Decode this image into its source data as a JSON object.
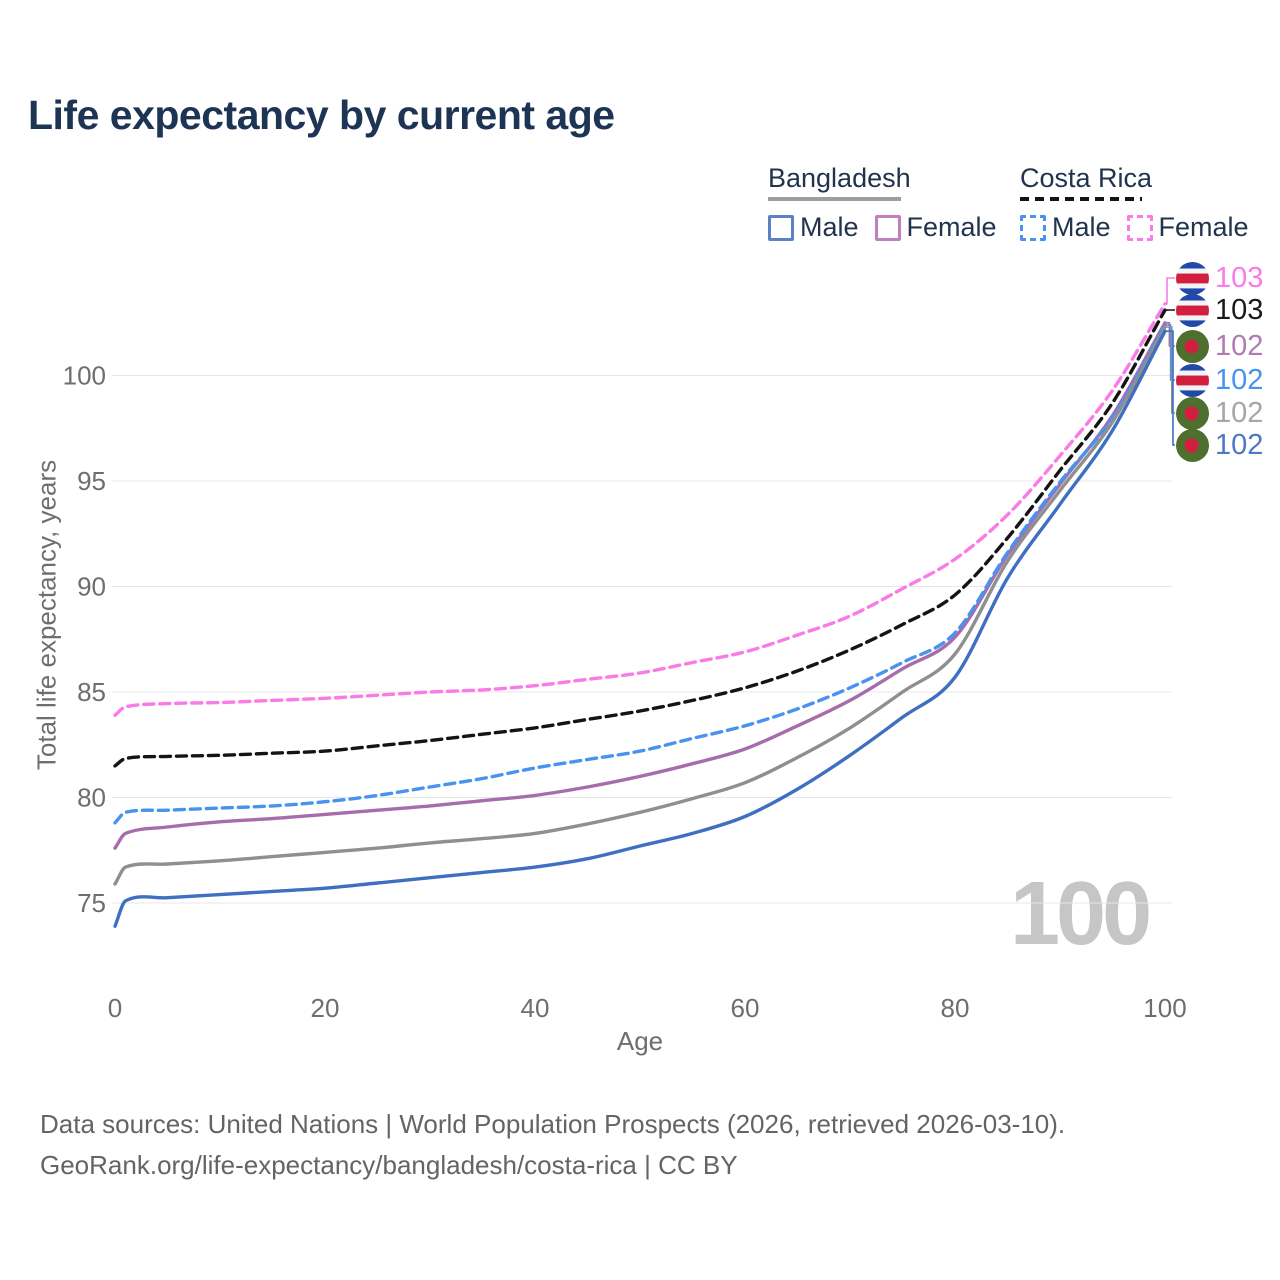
{
  "title": "Life expectancy by current age",
  "legend": {
    "groups": [
      {
        "name": "Bangladesh",
        "underline": "solid",
        "underline_color": "#9e9e9e",
        "items": [
          {
            "label": "Male",
            "color": "#5b82c7",
            "dash": false
          },
          {
            "label": "Female",
            "color": "#c17fc0",
            "dash": false
          }
        ]
      },
      {
        "name": "Costa Rica",
        "underline": "dashed",
        "underline_color": "#141414",
        "items": [
          {
            "label": "Male",
            "color": "#4893f0",
            "dash": true
          },
          {
            "label": "Female",
            "color": "#fa7ae6",
            "dash": true
          }
        ]
      }
    ]
  },
  "axes": {
    "y": {
      "title": "Total life expectancy, years",
      "ticks": [
        "75",
        "80",
        "85",
        "90",
        "95",
        "100"
      ],
      "tick_values": [
        75,
        80,
        85,
        90,
        95,
        100
      ]
    },
    "x": {
      "title": "Age",
      "ticks": [
        "0",
        "20",
        "40",
        "60",
        "80",
        "100"
      ],
      "tick_values": [
        0,
        20,
        40,
        60,
        80,
        100
      ]
    }
  },
  "age_indicator": "100",
  "end_labels": [
    {
      "flag": "costa-rica",
      "value": "103",
      "color": "#fa7ae6"
    },
    {
      "flag": "costa-rica",
      "value": "103",
      "color": "#1a1a1a"
    },
    {
      "flag": "bangladesh",
      "value": "102",
      "color": "#b07ab2"
    },
    {
      "flag": "costa-rica",
      "value": "102",
      "color": "#4893f0"
    },
    {
      "flag": "bangladesh",
      "value": "102",
      "color": "#a6a6a6"
    },
    {
      "flag": "bangladesh",
      "value": "102",
      "color": "#4d78c6"
    }
  ],
  "footer": {
    "line1": "Data sources: United Nations | World Population Prospects (2026, retrieved 2026-03-10).",
    "line2": "GeoRank.org/life-expectancy/bangladesh/costa-rica | CC BY"
  },
  "chart_data": {
    "type": "line",
    "title": "Life expectancy by current age",
    "xlabel": "Age",
    "ylabel": "Total life expectancy, years",
    "xlim": [
      0,
      100
    ],
    "ylim": [
      73,
      104
    ],
    "grid": "horizontal-only",
    "legend_position": "top-right",
    "x": [
      0,
      1,
      5,
      10,
      15,
      20,
      25,
      30,
      35,
      40,
      45,
      50,
      55,
      60,
      65,
      70,
      75,
      80,
      85,
      90,
      95,
      100
    ],
    "series": [
      {
        "name": "Costa Rica Female",
        "country": "Costa Rica",
        "sex": "Female",
        "color": "#fa7ae6",
        "dash": true,
        "end_label": "103",
        "values": [
          83.9,
          84.3,
          84.45,
          84.5,
          84.6,
          84.7,
          84.85,
          85.0,
          85.1,
          85.3,
          85.6,
          85.9,
          86.4,
          86.9,
          87.7,
          88.6,
          89.9,
          91.3,
          93.4,
          96.2,
          99.3,
          103.4
        ]
      },
      {
        "name": "Costa Rica Both sexes",
        "country": "Costa Rica",
        "sex": "Both",
        "color": "#141414",
        "dash": true,
        "end_label": "103",
        "values": [
          81.5,
          81.85,
          81.95,
          82.0,
          82.1,
          82.2,
          82.45,
          82.7,
          83.0,
          83.3,
          83.7,
          84.1,
          84.6,
          85.2,
          86.0,
          87.0,
          88.2,
          89.6,
          92.3,
          95.5,
          98.7,
          103.1
        ]
      },
      {
        "name": "Bangladesh Female",
        "country": "Bangladesh",
        "sex": "Female",
        "color": "#a76cab",
        "dash": false,
        "end_label": "102",
        "values": [
          77.6,
          78.3,
          78.6,
          78.85,
          79.0,
          79.2,
          79.4,
          79.6,
          79.85,
          80.1,
          80.5,
          81.0,
          81.6,
          82.3,
          83.4,
          84.6,
          86.1,
          87.6,
          91.5,
          94.85,
          98.1,
          102.5
        ]
      },
      {
        "name": "Costa Rica Male",
        "country": "Costa Rica",
        "sex": "Male",
        "color": "#4893f0",
        "dash": true,
        "end_label": "102",
        "values": [
          78.8,
          79.3,
          79.4,
          79.5,
          79.6,
          79.8,
          80.1,
          80.5,
          80.9,
          81.4,
          81.8,
          82.2,
          82.8,
          83.4,
          84.2,
          85.2,
          86.4,
          87.8,
          91.6,
          94.95,
          98.0,
          102.4
        ]
      },
      {
        "name": "Bangladesh Both sexes",
        "country": "Bangladesh",
        "sex": "Both",
        "color": "#8f8f8f",
        "dash": false,
        "end_label": "102",
        "values": [
          75.9,
          76.7,
          76.85,
          77.0,
          77.2,
          77.4,
          77.6,
          77.85,
          78.05,
          78.3,
          78.75,
          79.3,
          79.95,
          80.7,
          81.9,
          83.3,
          85.0,
          86.8,
          91.2,
          94.55,
          97.8,
          102.3
        ]
      },
      {
        "name": "Bangladesh Male",
        "country": "Bangladesh",
        "sex": "Male",
        "color": "#3e6fc1",
        "dash": false,
        "end_label": "102",
        "values": [
          73.9,
          75.1,
          75.25,
          75.4,
          75.55,
          75.7,
          75.95,
          76.2,
          76.45,
          76.7,
          77.1,
          77.7,
          78.3,
          79.1,
          80.4,
          82.0,
          83.8,
          85.7,
          90.4,
          93.9,
          97.4,
          102.1
        ]
      }
    ]
  }
}
